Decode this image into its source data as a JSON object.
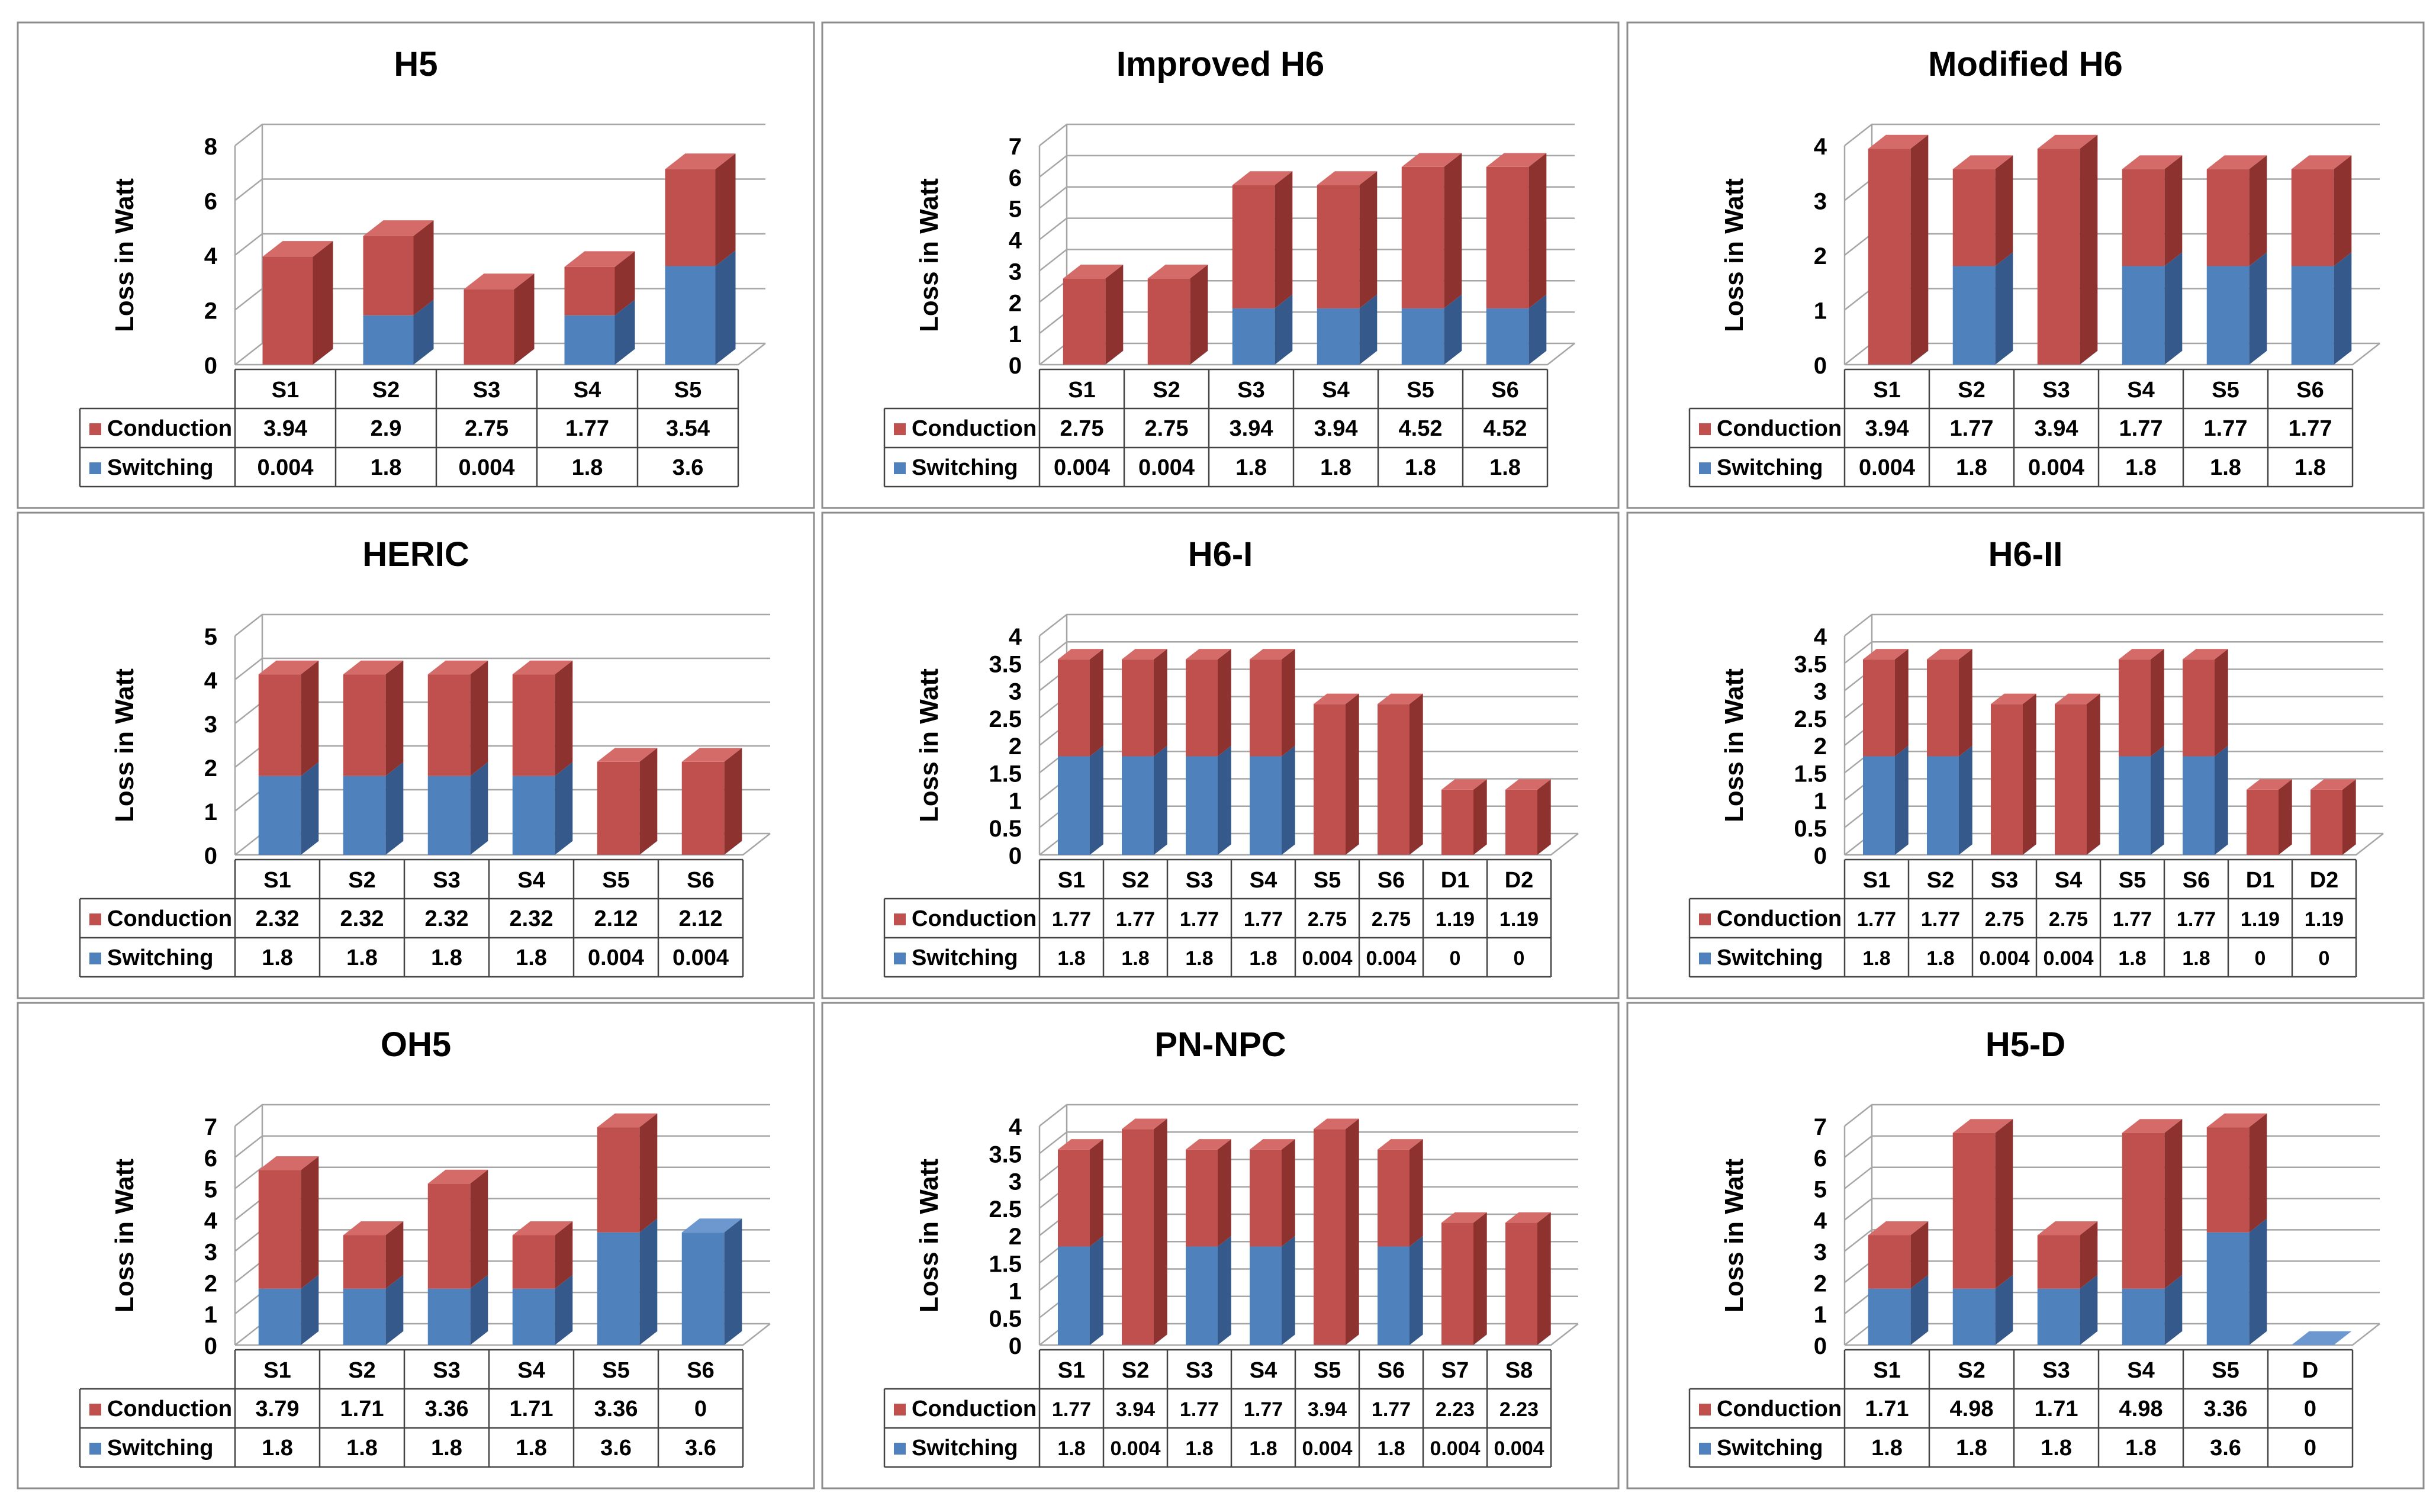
{
  "colors": {
    "conduction": "#c0504d",
    "conduction_top": "#d46b68",
    "conduction_side": "#8e3230",
    "switching": "#4f81bd",
    "switching_top": "#6c98cf",
    "switching_side": "#34598a",
    "grid": "#a6a6a6",
    "border": "#8c8c8c"
  },
  "legend": {
    "conduction": "Conduction",
    "switching": "Switching"
  },
  "ylabel": "Loss in Watt",
  "chart_data": [
    {
      "type": "bar",
      "stacked": true,
      "title": "H5",
      "categories": [
        "S1",
        "S2",
        "S3",
        "S4",
        "S5"
      ],
      "series": [
        {
          "name": "Conduction",
          "values": [
            3.94,
            2.9,
            2.75,
            1.77,
            3.54
          ],
          "labels": [
            "3.94",
            "2.9",
            "2.75",
            "1.77",
            "3.54"
          ]
        },
        {
          "name": "Switching",
          "values": [
            0.004,
            1.8,
            0.004,
            1.8,
            3.6
          ],
          "labels": [
            "0.004",
            "1.8",
            "0.004",
            "1.8",
            "3.6"
          ]
        }
      ],
      "ylim": [
        0,
        8
      ],
      "yticks": [
        "0",
        "2",
        "4",
        "6",
        "8"
      ],
      "ylabel": "Loss in Watt"
    },
    {
      "type": "bar",
      "stacked": true,
      "title": "Improved H6",
      "categories": [
        "S1",
        "S2",
        "S3",
        "S4",
        "S5",
        "S6"
      ],
      "series": [
        {
          "name": "Conduction",
          "values": [
            2.75,
            2.75,
            3.94,
            3.94,
            4.52,
            4.52
          ],
          "labels": [
            "2.75",
            "2.75",
            "3.94",
            "3.94",
            "4.52",
            "4.52"
          ]
        },
        {
          "name": "Switching",
          "values": [
            0.004,
            0.004,
            1.8,
            1.8,
            1.8,
            1.8
          ],
          "labels": [
            "0.004",
            "0.004",
            "1.8",
            "1.8",
            "1.8",
            "1.8"
          ]
        }
      ],
      "ylim": [
        0,
        7
      ],
      "yticks": [
        "0",
        "1",
        "2",
        "3",
        "4",
        "5",
        "6",
        "7"
      ],
      "ylabel": "Loss in Watt"
    },
    {
      "type": "bar",
      "stacked": true,
      "title": "Modified H6",
      "categories": [
        "S1",
        "S2",
        "S3",
        "S4",
        "S5",
        "S6"
      ],
      "series": [
        {
          "name": "Conduction",
          "values": [
            3.94,
            1.77,
            3.94,
            1.77,
            1.77,
            1.77
          ],
          "labels": [
            "3.94",
            "1.77",
            "3.94",
            "1.77",
            "1.77",
            "1.77"
          ]
        },
        {
          "name": "Switching",
          "values": [
            0.004,
            1.8,
            0.004,
            1.8,
            1.8,
            1.8
          ],
          "labels": [
            "0.004",
            "1.8",
            "0.004",
            "1.8",
            "1.8",
            "1.8"
          ]
        }
      ],
      "ylim": [
        0,
        4
      ],
      "yticks": [
        "0",
        "1",
        "2",
        "3",
        "4"
      ],
      "ylabel": "Loss in Watt"
    },
    {
      "type": "bar",
      "stacked": true,
      "title": "HERIC",
      "categories": [
        "S1",
        "S2",
        "S3",
        "S4",
        "S5",
        "S6"
      ],
      "series": [
        {
          "name": "Conduction",
          "values": [
            2.32,
            2.32,
            2.32,
            2.32,
            2.12,
            2.12
          ],
          "labels": [
            "2.32",
            "2.32",
            "2.32",
            "2.32",
            "2.12",
            "2.12"
          ]
        },
        {
          "name": "Switching",
          "values": [
            1.8,
            1.8,
            1.8,
            1.8,
            0.004,
            0.004
          ],
          "labels": [
            "1.8",
            "1.8",
            "1.8",
            "1.8",
            "0.004",
            "0.004"
          ]
        }
      ],
      "ylim": [
        0,
        5
      ],
      "yticks": [
        "0",
        "1",
        "2",
        "3",
        "4",
        "5"
      ],
      "ylabel": "Loss in Watt"
    },
    {
      "type": "bar",
      "stacked": true,
      "title": "H6-I",
      "categories": [
        "S1",
        "S2",
        "S3",
        "S4",
        "S5",
        "S6",
        "D1",
        "D2"
      ],
      "series": [
        {
          "name": "Conduction",
          "values": [
            1.77,
            1.77,
            1.77,
            1.77,
            2.75,
            2.75,
            1.19,
            1.19
          ],
          "labels": [
            "1.77",
            "1.77",
            "1.77",
            "1.77",
            "2.75",
            "2.75",
            "1.19",
            "1.19"
          ]
        },
        {
          "name": "Switching",
          "values": [
            1.8,
            1.8,
            1.8,
            1.8,
            0.004,
            0.004,
            0,
            0
          ],
          "labels": [
            "1.8",
            "1.8",
            "1.8",
            "1.8",
            "0.004",
            "0.004",
            "0",
            "0"
          ]
        }
      ],
      "ylim": [
        0,
        4
      ],
      "yticks": [
        "0",
        "0.5",
        "1",
        "1.5",
        "2",
        "2.5",
        "3",
        "3.5",
        "4"
      ],
      "ylabel": "Loss in Watt"
    },
    {
      "type": "bar",
      "stacked": true,
      "title": "H6-II",
      "categories": [
        "S1",
        "S2",
        "S3",
        "S4",
        "S5",
        "S6",
        "D1",
        "D2"
      ],
      "series": [
        {
          "name": "Conduction",
          "values": [
            1.77,
            1.77,
            2.75,
            2.75,
            1.77,
            1.77,
            1.19,
            1.19
          ],
          "labels": [
            "1.77",
            "1.77",
            "2.75",
            "2.75",
            "1.77",
            "1.77",
            "1.19",
            "1.19"
          ]
        },
        {
          "name": "Switching",
          "values": [
            1.8,
            1.8,
            0.004,
            0.004,
            1.8,
            1.8,
            0,
            0
          ],
          "labels": [
            "1.8",
            "1.8",
            "0.004",
            "0.004",
            "1.8",
            "1.8",
            "0",
            "0"
          ]
        }
      ],
      "ylim": [
        0,
        4
      ],
      "yticks": [
        "0",
        "0.5",
        "1",
        "1.5",
        "2",
        "2.5",
        "3",
        "3.5",
        "4"
      ],
      "ylabel": "Loss in Watt"
    },
    {
      "type": "bar",
      "stacked": true,
      "title": "OH5",
      "categories": [
        "S1",
        "S2",
        "S3",
        "S4",
        "S5",
        "S6"
      ],
      "series": [
        {
          "name": "Conduction",
          "values": [
            3.79,
            1.71,
            3.36,
            1.71,
            3.36,
            0
          ],
          "labels": [
            "3.79",
            "1.71",
            "3.36",
            "1.71",
            "3.36",
            "0"
          ]
        },
        {
          "name": "Switching",
          "values": [
            1.8,
            1.8,
            1.8,
            1.8,
            3.6,
            3.6
          ],
          "labels": [
            "1.8",
            "1.8",
            "1.8",
            "1.8",
            "3.6",
            "3.6"
          ]
        }
      ],
      "ylim": [
        0,
        7
      ],
      "yticks": [
        "0",
        "1",
        "2",
        "3",
        "4",
        "5",
        "6",
        "7"
      ],
      "ylabel": "Loss in Watt"
    },
    {
      "type": "bar",
      "stacked": true,
      "title": "PN-NPC",
      "categories": [
        "S1",
        "S2",
        "S3",
        "S4",
        "S5",
        "S6",
        "S7",
        "S8"
      ],
      "series": [
        {
          "name": "Conduction",
          "values": [
            1.77,
            3.94,
            1.77,
            1.77,
            3.94,
            1.77,
            2.23,
            2.23
          ],
          "labels": [
            "1.77",
            "3.94",
            "1.77",
            "1.77",
            "3.94",
            "1.77",
            "2.23",
            "2.23"
          ]
        },
        {
          "name": "Switching",
          "values": [
            1.8,
            0.004,
            1.8,
            1.8,
            0.004,
            1.8,
            0.004,
            0.004
          ],
          "labels": [
            "1.8",
            "0.004",
            "1.8",
            "1.8",
            "0.004",
            "1.8",
            "0.004",
            "0.004"
          ]
        }
      ],
      "ylim": [
        0,
        4
      ],
      "yticks": [
        "0",
        "0.5",
        "1",
        "1.5",
        "2",
        "2.5",
        "3",
        "3.5",
        "4"
      ],
      "ylabel": "Loss in Watt"
    },
    {
      "type": "bar",
      "stacked": true,
      "title": "H5-D",
      "categories": [
        "S1",
        "S2",
        "S3",
        "S4",
        "S5",
        "D"
      ],
      "series": [
        {
          "name": "Conduction",
          "values": [
            1.71,
            4.98,
            1.71,
            4.98,
            3.36,
            0
          ],
          "labels": [
            "1.71",
            "4.98",
            "1.71",
            "4.98",
            "3.36",
            "0"
          ]
        },
        {
          "name": "Switching",
          "values": [
            1.8,
            1.8,
            1.8,
            1.8,
            3.6,
            0
          ],
          "labels": [
            "1.8",
            "1.8",
            "1.8",
            "1.8",
            "3.6",
            "0"
          ]
        }
      ],
      "ylim": [
        0,
        7
      ],
      "yticks": [
        "0",
        "1",
        "2",
        "3",
        "4",
        "5",
        "6",
        "7"
      ],
      "ylabel": "Loss in Watt"
    }
  ]
}
